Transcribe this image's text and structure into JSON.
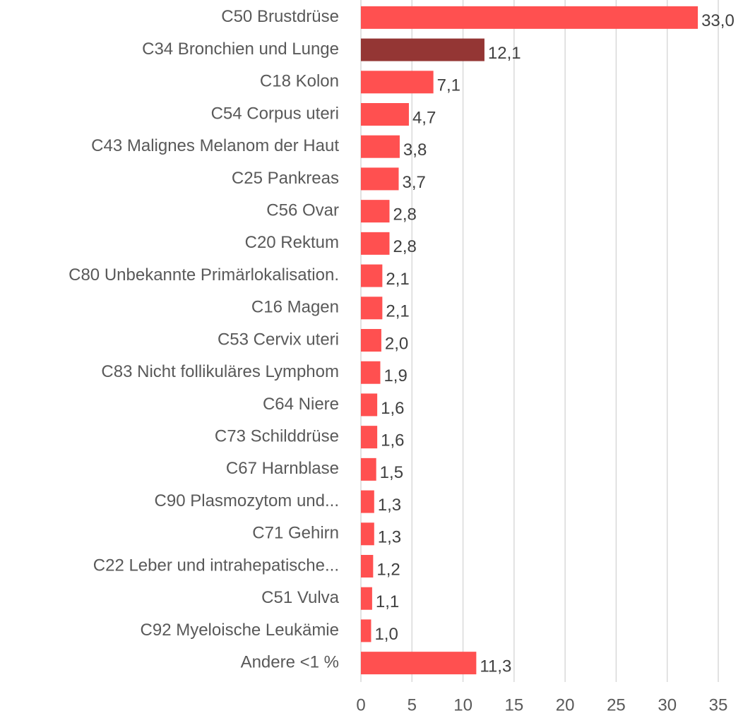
{
  "chart_data": {
    "type": "bar",
    "orientation": "horizontal",
    "categories": [
      "C50 Brustdrüse",
      "C34 Bronchien und Lunge",
      "C18 Kolon",
      "C54 Corpus uteri",
      "C43 Malignes Melanom der Haut",
      "C25 Pankreas",
      "C56 Ovar",
      "C20 Rektum",
      "C80 Unbekannte Primärlokalisation.",
      "C16 Magen",
      "C53 Cervix uteri",
      "C83 Nicht follikuläres Lymphom",
      "C64 Niere",
      "C73 Schilddrüse",
      "C67 Harnblase",
      "C90 Plasmozytom und...",
      "C71 Gehirn",
      "C22 Leber und intrahepatische...",
      "C51 Vulva",
      "C92 Myeloische Leukämie",
      "Andere <1 %"
    ],
    "values": [
      33.0,
      12.1,
      7.1,
      4.7,
      3.8,
      3.7,
      2.8,
      2.8,
      2.1,
      2.1,
      2.0,
      1.9,
      1.6,
      1.6,
      1.5,
      1.3,
      1.3,
      1.2,
      1.1,
      1.0,
      11.3
    ],
    "value_labels": [
      "33,0",
      "12,1",
      "7,1",
      "4,7",
      "3,8",
      "3,7",
      "2,8",
      "2,8",
      "2,1",
      "2,1",
      "2,0",
      "1,9",
      "1,6",
      "1,6",
      "1,5",
      "1,3",
      "1,3",
      "1,2",
      "1,1",
      "1,0",
      "11,3"
    ],
    "colors": [
      "#ff5050",
      "#943634",
      "#ff5050",
      "#ff5050",
      "#ff5050",
      "#ff5050",
      "#ff5050",
      "#ff5050",
      "#ff5050",
      "#ff5050",
      "#ff5050",
      "#ff5050",
      "#ff5050",
      "#ff5050",
      "#ff5050",
      "#ff5050",
      "#ff5050",
      "#ff5050",
      "#ff5050",
      "#ff5050",
      "#ff5050"
    ],
    "xlim": [
      0,
      35
    ],
    "xticks": [
      0,
      5,
      10,
      15,
      20,
      25,
      30,
      35
    ],
    "grid": true
  }
}
